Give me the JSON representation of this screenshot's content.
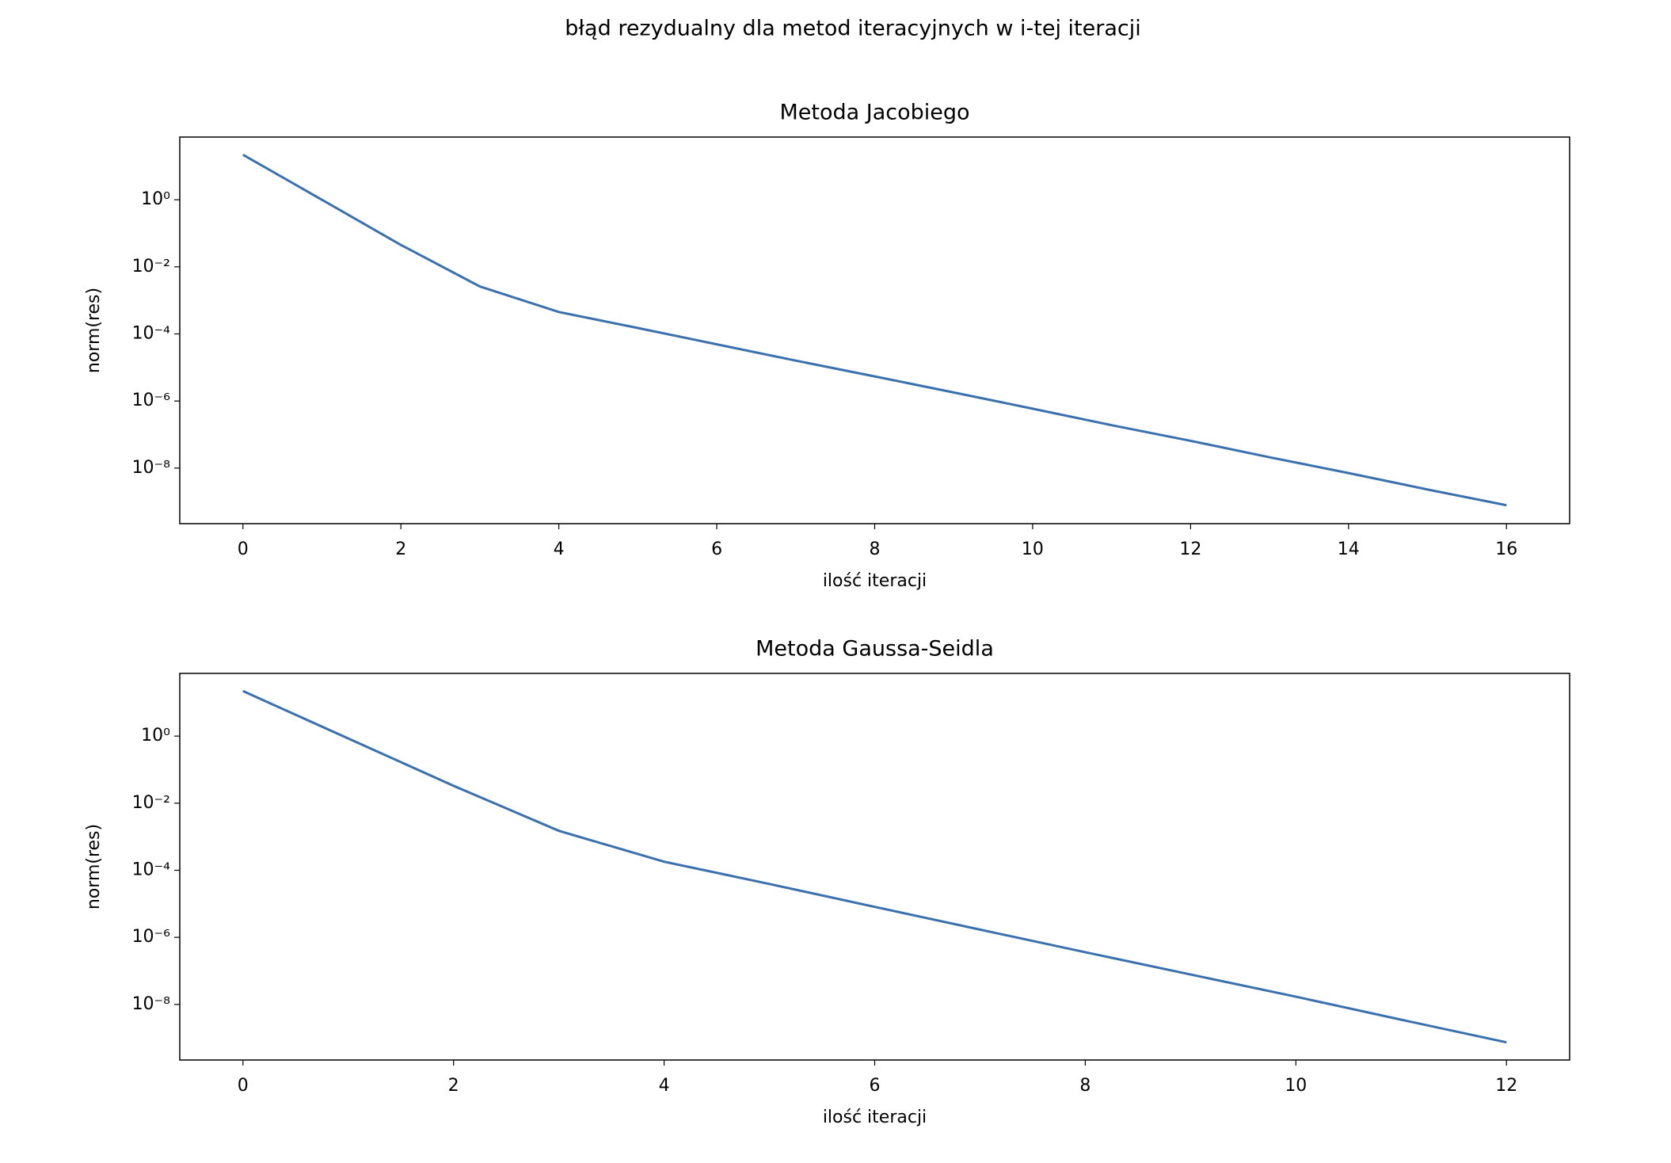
{
  "title": "błąd rezydualny dla metod iteracyjnych w i-tej iteracji",
  "chart_data": [
    {
      "type": "line",
      "title": "Metoda Jacobiego",
      "x_label": "ilość iteracji",
      "y_label": "norm(res)",
      "x": [
        0,
        1,
        2,
        3,
        4,
        5,
        6,
        7,
        8,
        9,
        10,
        11,
        12,
        13,
        14,
        15,
        16
      ],
      "values": [
        22,
        1.0,
        0.045,
        0.0026,
        0.00045,
        0.00015,
        4.9e-05,
        1.6e-05,
        5.4e-06,
        1.8e-06,
        5.9e-07,
        1.9e-07,
        6.5e-08,
        2.1e-08,
        7.1e-09,
        2.3e-09,
        7.8e-10
      ],
      "color": "#3a70ad",
      "log_y": true,
      "xlim": [
        -0.8,
        16.8
      ],
      "xticks": [
        0,
        2,
        4,
        6,
        8,
        10,
        12,
        14,
        16
      ],
      "ylim": [
        2.2e-10,
        74
      ],
      "yticks": [
        {
          "value": 1e-08,
          "label": "10⁻⁸"
        },
        {
          "value": 1e-06,
          "label": "10⁻⁶"
        },
        {
          "value": 0.0001,
          "label": "10⁻⁴"
        },
        {
          "value": 0.01,
          "label": "10⁻²"
        },
        {
          "value": 1,
          "label": "10⁰"
        }
      ]
    },
    {
      "type": "line",
      "title": "Metoda Gaussa-Seidla",
      "x_label": "ilość iteracji",
      "y_label": "norm(res)",
      "x": [
        0,
        1,
        2,
        3,
        4,
        5,
        6,
        7,
        8,
        9,
        10,
        11,
        12
      ],
      "values": [
        22,
        0.85,
        0.033,
        0.0015,
        0.00018,
        3.9e-05,
        8.1e-06,
        1.7e-06,
        3.6e-07,
        7.8e-08,
        1.7e-08,
        3.5e-09,
        7.4e-10
      ],
      "color": "#3a70ad",
      "log_y": true,
      "xlim": [
        -0.6,
        12.6
      ],
      "xticks": [
        0,
        2,
        4,
        6,
        8,
        10,
        12
      ],
      "ylim": [
        2.2e-10,
        74
      ],
      "yticks": [
        {
          "value": 1e-08,
          "label": "10⁻⁸"
        },
        {
          "value": 1e-06,
          "label": "10⁻⁶"
        },
        {
          "value": 0.0001,
          "label": "10⁻⁴"
        },
        {
          "value": 0.01,
          "label": "10⁻²"
        },
        {
          "value": 1,
          "label": "10⁰"
        }
      ]
    }
  ]
}
